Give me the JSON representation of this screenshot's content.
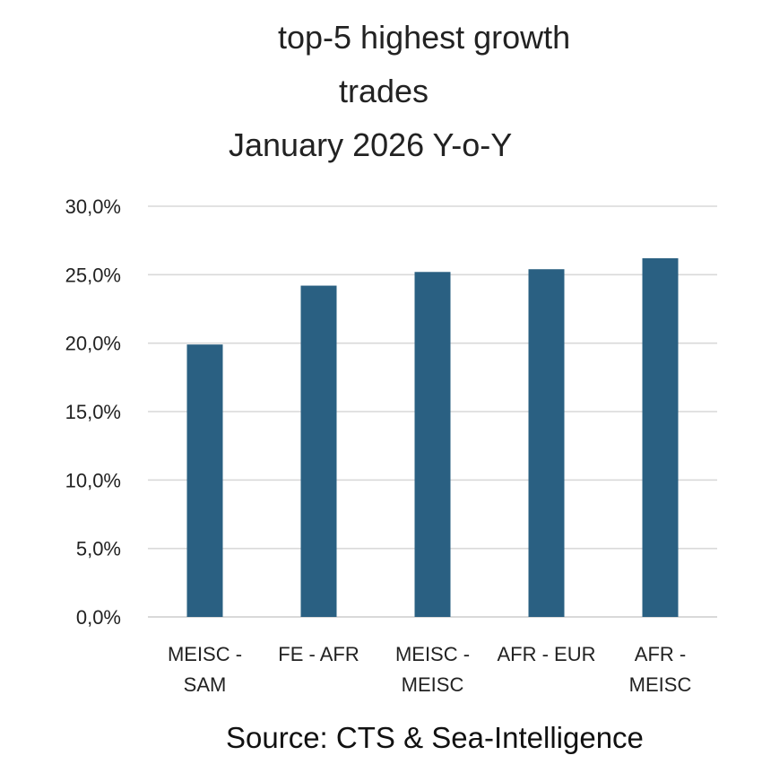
{
  "chart_data": {
    "type": "bar",
    "title_lines": [
      "top-5 highest growth",
      "trades",
      "January 2026 Y-o-Y"
    ],
    "categories": [
      [
        "MEISC -",
        "SAM"
      ],
      [
        "FE - AFR"
      ],
      [
        "MEISC -",
        "MEISC"
      ],
      [
        "AFR - EUR"
      ],
      [
        "AFR -",
        "MEISC"
      ]
    ],
    "values": [
      19.9,
      24.2,
      25.2,
      25.4,
      26.2
    ],
    "ylim": [
      0,
      30
    ],
    "yticks": [
      0,
      5,
      10,
      15,
      20,
      25,
      30
    ],
    "ytick_labels": [
      "0,0%",
      "5,0%",
      "10,0%",
      "15,0%",
      "20,0%",
      "25,0%",
      "30,0%"
    ],
    "xlabel": "",
    "ylabel": "",
    "grid": true,
    "bar_color": "#2a6082",
    "grid_color": "#d9d9d9"
  },
  "source_note": "Source: CTS & Sea-Intelligence"
}
